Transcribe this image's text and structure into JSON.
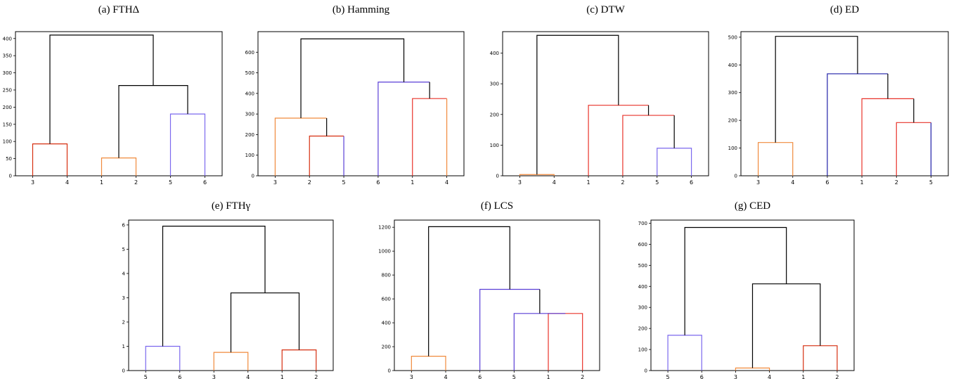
{
  "chart_data": [
    {
      "type": "dendrogram",
      "title": "(a) FTHΔ",
      "ylim": [
        0,
        420
      ],
      "yticks": [
        0,
        50,
        100,
        150,
        200,
        250,
        300,
        350,
        400
      ],
      "leaves": [
        "3",
        "4",
        "1",
        "2",
        "5",
        "6"
      ],
      "links": [
        {
          "a": 0,
          "b": 1,
          "h": 93,
          "ha": 0,
          "hb": 0,
          "color": "#d62f10"
        },
        {
          "a": 2,
          "b": 3,
          "h": 52,
          "ha": 0,
          "hb": 0,
          "color": "#f08a3c"
        },
        {
          "a": 4,
          "b": 5,
          "h": 180,
          "ha": 0,
          "hb": 0,
          "color": "#7b68ee"
        },
        {
          "a": 2.5,
          "b": 4.5,
          "h": 263,
          "ha": 52,
          "hb": 180,
          "color": "#000000"
        },
        {
          "a": 0.5,
          "b": 3.5,
          "h": 410,
          "ha": 93,
          "hb": 263,
          "color": "#000000"
        }
      ]
    },
    {
      "type": "dendrogram",
      "title": "(b) Hamming",
      "ylim": [
        0,
        700
      ],
      "yticks": [
        0,
        100,
        200,
        300,
        400,
        500,
        600
      ],
      "leaves": [
        "3",
        "2",
        "5",
        "6",
        "1",
        "4"
      ],
      "links": [
        {
          "a": 1,
          "b": 2,
          "h": 193,
          "ha": 0,
          "hb": 0,
          "color": "#d62f10",
          "color_b": "#5a3fd6"
        },
        {
          "a": 0,
          "b": 1.5,
          "h": 280,
          "ha": 0,
          "hb": 193,
          "color": "#f08a3c",
          "color_b": "#000000"
        },
        {
          "a": 4,
          "b": 5,
          "h": 375,
          "ha": 0,
          "hb": 0,
          "color": "#e8332a",
          "color_b": "#f08a3c"
        },
        {
          "a": 3,
          "b": 4.5,
          "h": 455,
          "ha": 0,
          "hb": 375,
          "color": "#5a3fd6",
          "color_b": "#000000"
        },
        {
          "a": 0.75,
          "b": 3.75,
          "h": 665,
          "ha": 280,
          "hb": 455,
          "color": "#000000"
        }
      ]
    },
    {
      "type": "dendrogram",
      "title": "(c) DTW",
      "ylim": [
        0,
        470
      ],
      "yticks": [
        0,
        100,
        200,
        300,
        400
      ],
      "leaves": [
        "3",
        "4",
        "1",
        "2",
        "5",
        "6"
      ],
      "links": [
        {
          "a": 0,
          "b": 1,
          "h": 4,
          "ha": 0,
          "hb": 0,
          "color": "#f08a3c"
        },
        {
          "a": 4,
          "b": 5,
          "h": 90,
          "ha": 0,
          "hb": 0,
          "color": "#7b68ee"
        },
        {
          "a": 3,
          "b": 4.5,
          "h": 197,
          "ha": 0,
          "hb": 90,
          "color": "#e8332a",
          "color_b": "#000000"
        },
        {
          "a": 2,
          "b": 3.75,
          "h": 230,
          "ha": 0,
          "hb": 197,
          "color": "#e8332a",
          "color_b": "#000000"
        },
        {
          "a": 0.5,
          "b": 2.875,
          "h": 458,
          "ha": 4,
          "hb": 230,
          "color": "#000000"
        }
      ]
    },
    {
      "type": "dendrogram",
      "title": "(d) ED",
      "ylim": [
        0,
        520
      ],
      "yticks": [
        0,
        100,
        200,
        300,
        400,
        500
      ],
      "leaves": [
        "3",
        "4",
        "6",
        "1",
        "2",
        "5"
      ],
      "links": [
        {
          "a": 0,
          "b": 1,
          "h": 120,
          "ha": 0,
          "hb": 0,
          "color": "#f08a3c"
        },
        {
          "a": 4,
          "b": 5,
          "h": 192,
          "ha": 0,
          "hb": 0,
          "color": "#e8332a",
          "color_b": "#1f1fa8"
        },
        {
          "a": 3,
          "b": 4.5,
          "h": 278,
          "ha": 0,
          "hb": 192,
          "color": "#e8332a",
          "color_b": "#000000"
        },
        {
          "a": 2,
          "b": 3.75,
          "h": 368,
          "ha": 0,
          "hb": 278,
          "color": "#1f1fa8",
          "color_b": "#000000"
        },
        {
          "a": 0.5,
          "b": 2.875,
          "h": 503,
          "ha": 120,
          "hb": 368,
          "color": "#000000"
        }
      ]
    },
    {
      "type": "dendrogram",
      "title": "(e) FTHγ",
      "ylim": [
        0,
        6.2
      ],
      "yticks": [
        0,
        1,
        2,
        3,
        4,
        5,
        6
      ],
      "leaves": [
        "5",
        "6",
        "3",
        "4",
        "1",
        "2"
      ],
      "links": [
        {
          "a": 0,
          "b": 1,
          "h": 1.0,
          "ha": 0,
          "hb": 0,
          "color": "#7b68ee"
        },
        {
          "a": 2,
          "b": 3,
          "h": 0.75,
          "ha": 0,
          "hb": 0,
          "color": "#f08a3c"
        },
        {
          "a": 4,
          "b": 5,
          "h": 0.85,
          "ha": 0,
          "hb": 0,
          "color": "#d62f10"
        },
        {
          "a": 2.5,
          "b": 4.5,
          "h": 3.2,
          "ha": 0.75,
          "hb": 0.85,
          "color": "#000000"
        },
        {
          "a": 0.5,
          "b": 3.5,
          "h": 5.95,
          "ha": 1.0,
          "hb": 3.2,
          "color": "#000000"
        }
      ]
    },
    {
      "type": "dendrogram",
      "title": "(f) LCS",
      "ylim": [
        0,
        1260
      ],
      "yticks": [
        0,
        200,
        400,
        600,
        800,
        1000,
        1200
      ],
      "leaves": [
        "3",
        "4",
        "6",
        "5",
        "1",
        "2"
      ],
      "links": [
        {
          "a": 0,
          "b": 1,
          "h": 120,
          "ha": 0,
          "hb": 0,
          "color": "#f08a3c"
        },
        {
          "a": 4,
          "b": 5,
          "h": 478,
          "ha": 0,
          "hb": 0,
          "color": "#e8332a"
        },
        {
          "a": 3,
          "b": 4.5,
          "h": 478,
          "ha": 0,
          "hb": 478,
          "color": "#5a3fd6",
          "color_b": "#000000"
        },
        {
          "a": 2,
          "b": 3.75,
          "h": 680,
          "ha": 0,
          "hb": 478,
          "color": "#5a3fd6",
          "color_b": "#000000"
        },
        {
          "a": 0.5,
          "b": 2.875,
          "h": 1205,
          "ha": 120,
          "hb": 680,
          "color": "#000000"
        }
      ]
    },
    {
      "type": "dendrogram",
      "title": "(g) CED",
      "ylim": [
        0,
        715
      ],
      "yticks": [
        0,
        100,
        200,
        300,
        400,
        500,
        600,
        700
      ],
      "leaves": [
        "5",
        "6",
        "3",
        "4",
        "1",
        "2"
      ],
      "links": [
        {
          "a": 0,
          "b": 1,
          "h": 168,
          "ha": 0,
          "hb": 0,
          "color": "#7b68ee"
        },
        {
          "a": 2,
          "b": 3,
          "h": 12,
          "ha": 0,
          "hb": 0,
          "color": "#f08a3c"
        },
        {
          "a": 4,
          "b": 5,
          "h": 118,
          "ha": 0,
          "hb": 0,
          "color": "#d62f10"
        },
        {
          "a": 2.5,
          "b": 4.5,
          "h": 412,
          "ha": 12,
          "hb": 118,
          "color": "#000000"
        },
        {
          "a": 0.5,
          "b": 3.5,
          "h": 680,
          "ha": 168,
          "hb": 412,
          "color": "#000000"
        }
      ]
    }
  ]
}
